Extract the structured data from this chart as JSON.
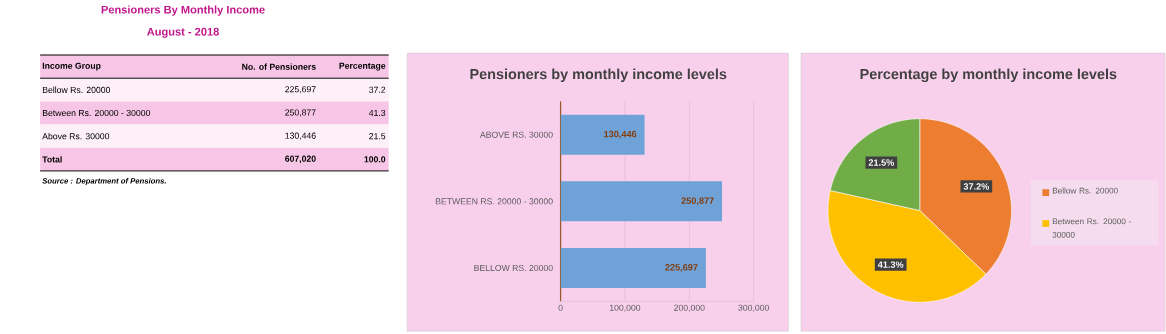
{
  "chart_data": [
    {
      "type": "other",
      "title": "Pensioners By Monthly Income",
      "subtitle": "August - 2018",
      "annotations": [
        "Income Group",
        "No. of Pensioners",
        "Percentage",
        "Bellow Rs. 20000",
        "225,697",
        "37.2",
        "Between Rs. 20000 - 30000",
        "250,877",
        "41.3",
        "Above Rs. 30000",
        "130,446",
        "21.5",
        "Total",
        "607,020",
        "100.0",
        "Source : Department of Pensions."
      ]
    },
    {
      "type": "bar",
      "orientation": "horizontal",
      "title": "Pensioners by monthly income levels",
      "categories": [
        "ABOVE RS. 30000",
        "BETWEEN RS. 20000 - 30000",
        "BELLOW RS. 20000"
      ],
      "series": [
        {
          "color": "#6fa3d8",
          "values": [
            130446,
            250877,
            225697
          ],
          "value_labels": [
            "130,446",
            "250,877",
            "225,697"
          ]
        }
      ],
      "xlim": [
        0,
        300000
      ],
      "xticks": [
        0,
        {
          "value": 100000,
          "label": "100,000"
        },
        {
          "value": 200000,
          "label": "200,000"
        },
        {
          "value": 300000,
          "label": "300,000"
        }
      ],
      "grid": "x"
    },
    {
      "type": "pie",
      "title": "Percentage by monthly income levels",
      "categories": [
        "Bellow Rs. 20000",
        "Between Rs. 20000 - 30000",
        null
      ],
      "values": [
        37.2,
        41.3,
        21.5
      ],
      "value_labels": [
        "37.2%",
        "41.3%",
        "21.5%"
      ],
      "colors": [
        "#ed7d31",
        "#ffc000",
        "#70ad47"
      ],
      "legend": "right"
    }
  ]
}
